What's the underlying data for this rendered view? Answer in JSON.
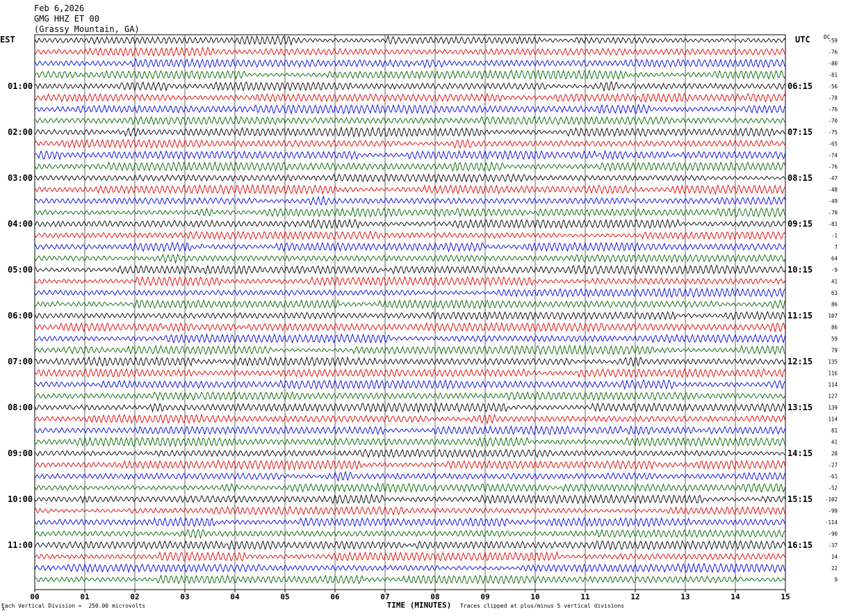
{
  "header": {
    "date": "Feb 6,2026",
    "station": "GMG HHZ ET 00",
    "location": "(Grassy Mountain, GA)",
    "tz_left": "EST",
    "tz_right": "UTC",
    "dc_label": "DC"
  },
  "footer": {
    "vertical_division": "Each Vertical Division =  250.00 microvolts",
    "clip_note": "Traces clipped at plus/minus 5 vertical divisions",
    "corner_mark": "A"
  },
  "colors": {
    "trace_cycle": [
      "#000000",
      "#e00000",
      "#0000e0",
      "#006400"
    ],
    "grid": "#000000",
    "background": "#ffffff"
  },
  "chart_data": {
    "type": "line",
    "title": "",
    "xlabel": "TIME (MINUTES)",
    "ylabel": "",
    "xlim": [
      0,
      15
    ],
    "x_ticks": [
      "00",
      "01",
      "02",
      "03",
      "04",
      "05",
      "06",
      "07",
      "08",
      "09",
      "10",
      "11",
      "12",
      "13",
      "14",
      "15"
    ],
    "row_interval_minutes": 15,
    "row_count": 48,
    "left_hour_labels": [
      "01:00",
      "02:00",
      "03:00",
      "04:00",
      "05:00",
      "06:00",
      "07:00",
      "08:00",
      "09:00",
      "10:00",
      "11:00"
    ],
    "right_hour_labels": [
      "06:15",
      "07:15",
      "08:15",
      "09:15",
      "10:15",
      "11:15",
      "12:15",
      "13:15",
      "14:15",
      "15:15",
      "16:15"
    ],
    "hour_label_first_row": 4,
    "dc_offsets": [
      -59,
      -76,
      -80,
      -81,
      -56,
      -78,
      -76,
      -70,
      -75,
      -65,
      -74,
      -76,
      -47,
      -48,
      -49,
      -70,
      -81,
      -1,
      7,
      64,
      -9,
      41,
      63,
      86,
      107,
      86,
      59,
      79,
      135,
      116,
      114,
      127,
      139,
      114,
      81,
      41,
      28,
      -27,
      -61,
      -52,
      -102,
      -99,
      -114,
      -90,
      -37,
      14,
      22,
      9
    ],
    "clip_divisions": 5,
    "microvolts_per_division": 250.0
  }
}
